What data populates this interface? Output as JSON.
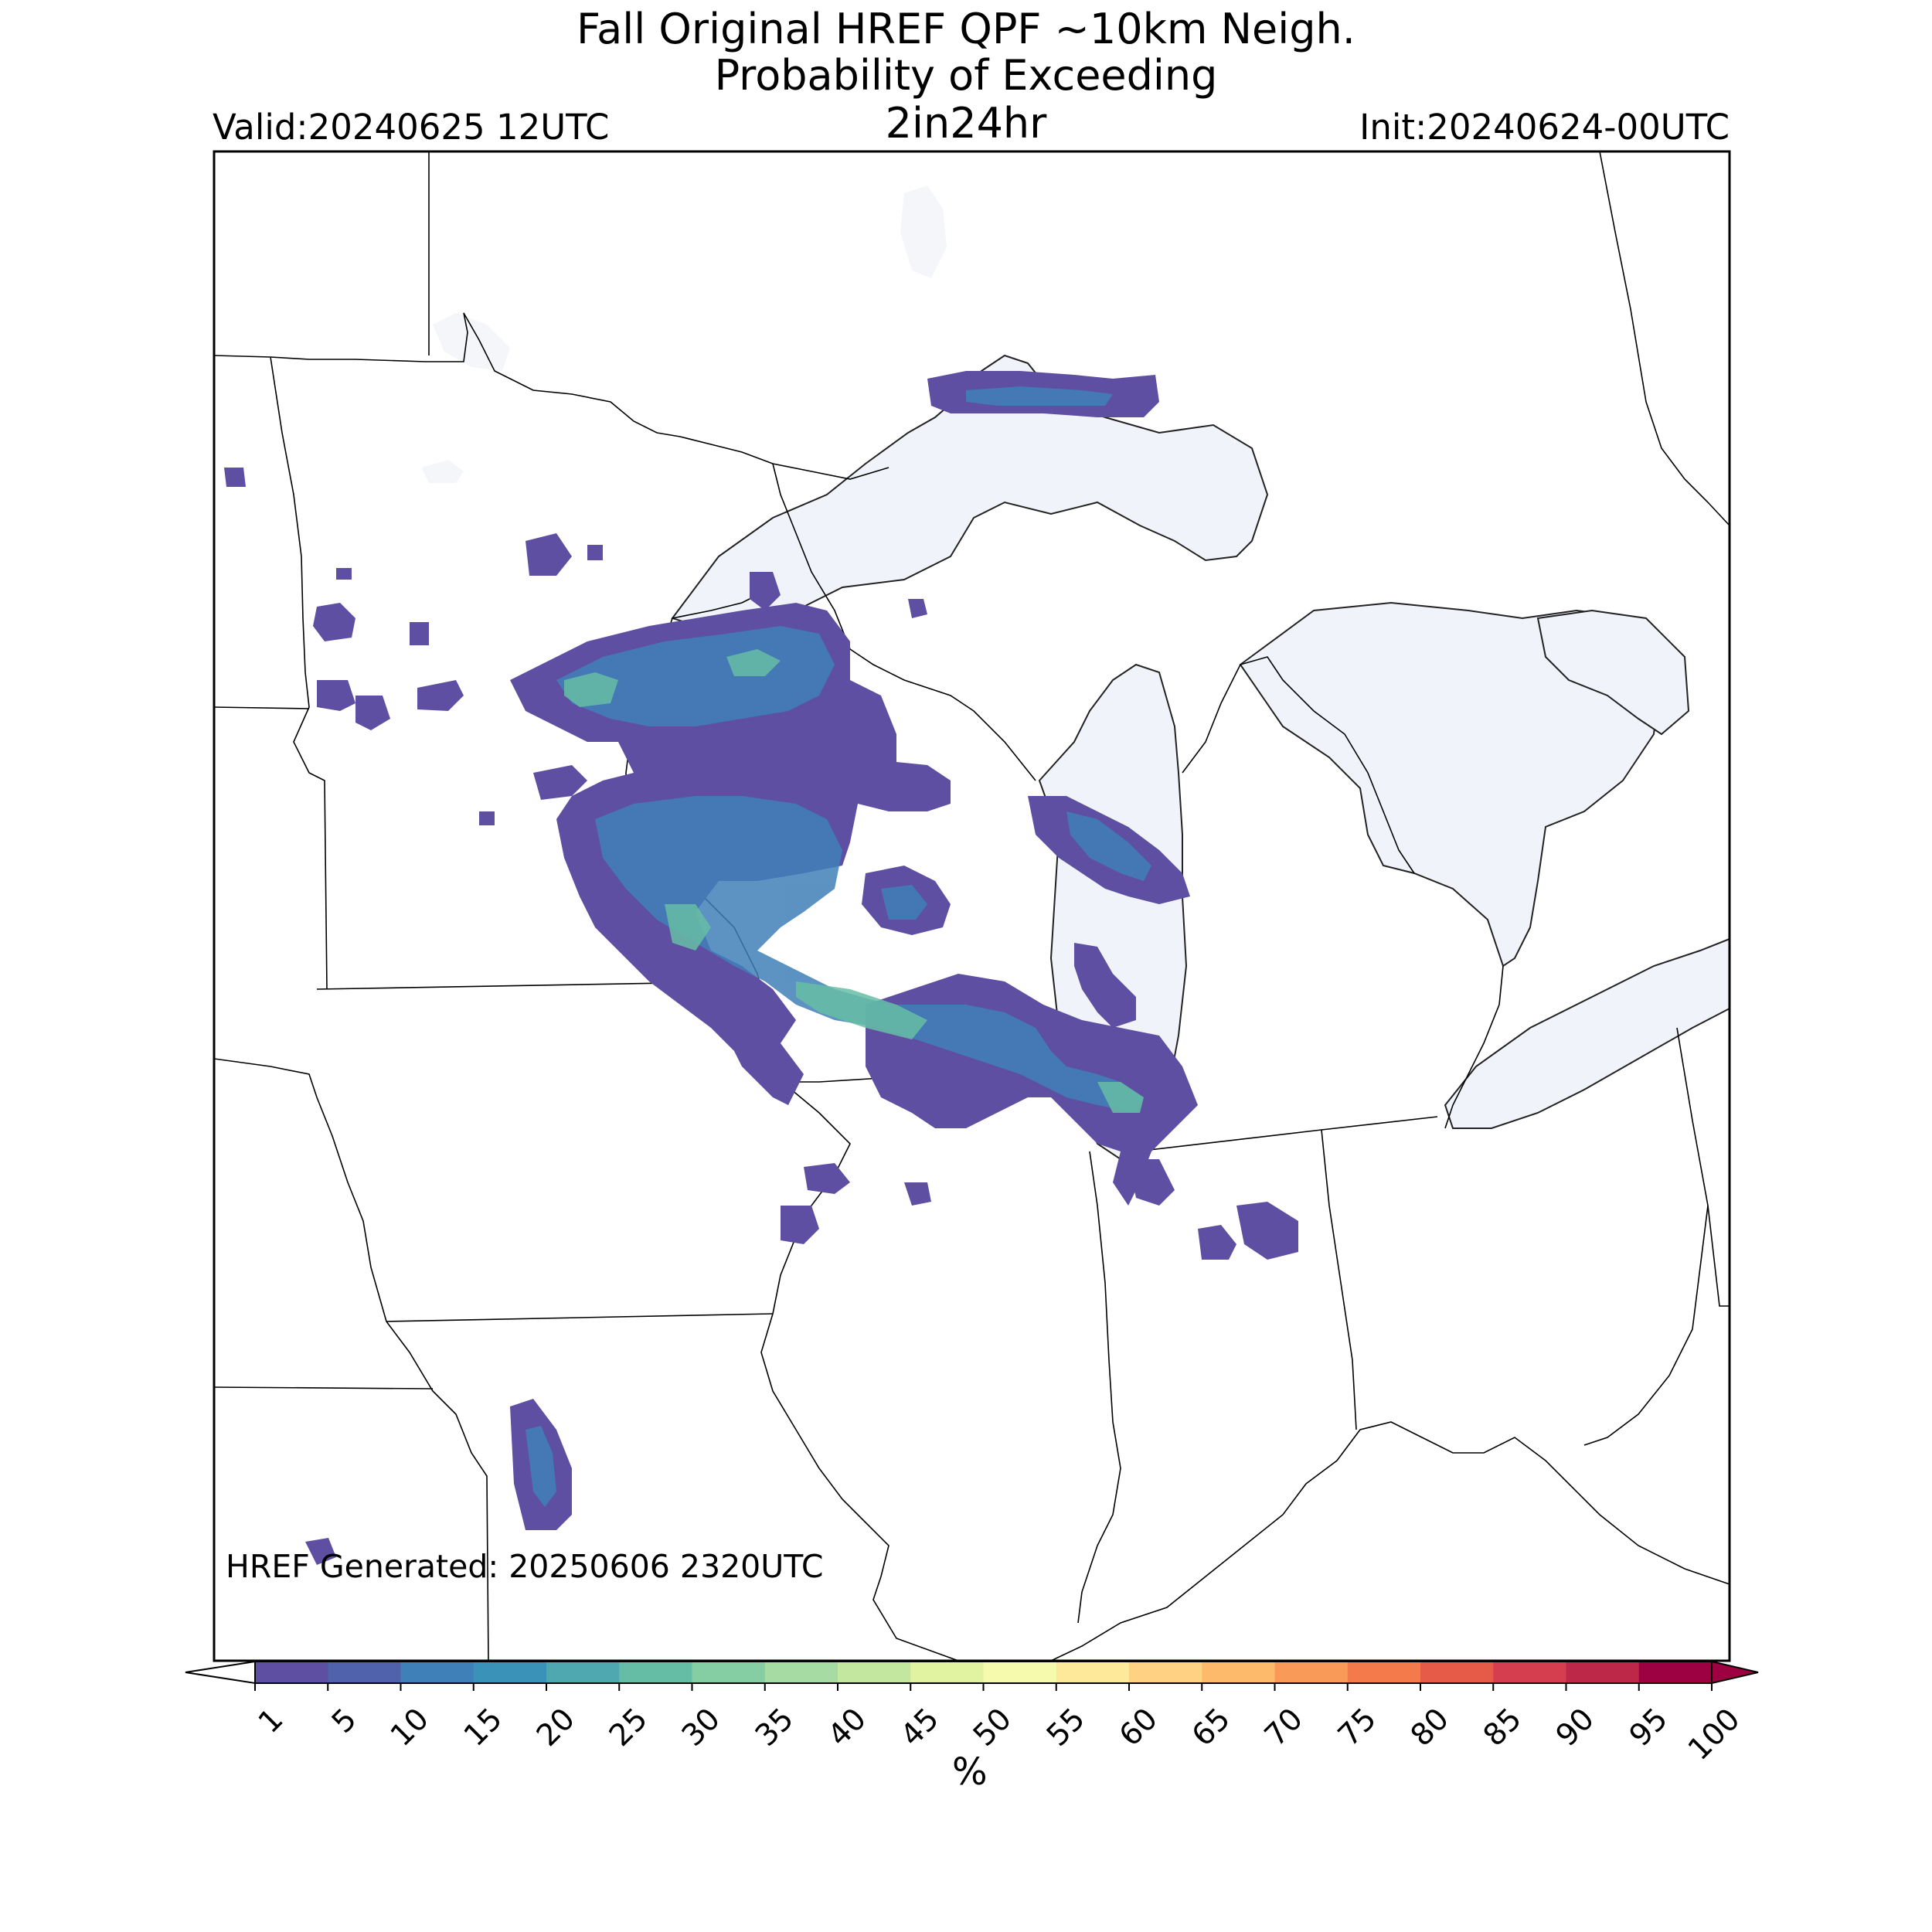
{
  "title": {
    "line1": "Fall Original HREF QPF ~10km Neigh.",
    "line2": "Probability of Exceeding",
    "line3": "2in24hr"
  },
  "valid_label": "Valid:20240625 12UTC",
  "init_label": "Init:20240624-00UTC",
  "generated_label": "HREF Generated: 20250606 2320UTC",
  "colorbar": {
    "unit_label": "%",
    "ticks": [
      "1",
      "5",
      "10",
      "15",
      "20",
      "25",
      "30",
      "35",
      "40",
      "45",
      "50",
      "55",
      "60",
      "65",
      "70",
      "75",
      "80",
      "85",
      "90",
      "95",
      "100"
    ],
    "colors": [
      "#5e4fa2",
      "#4f62ab",
      "#3f80b8",
      "#3b92b8",
      "#4fa7b0",
      "#66bda6",
      "#85cda3",
      "#a6dba3",
      "#c4e7a0",
      "#e1f3a0",
      "#f6faac",
      "#fee899",
      "#fed282",
      "#fdba6b",
      "#fa9a59",
      "#f47a4b",
      "#e65a48",
      "#d53e4f",
      "#bd2748",
      "#9e0142"
    ],
    "under_color": "#ffffff",
    "over_color": "#9e0142"
  },
  "map_colors": {
    "lake_fill": "#f0f4fa",
    "boundary": "#000000"
  }
}
